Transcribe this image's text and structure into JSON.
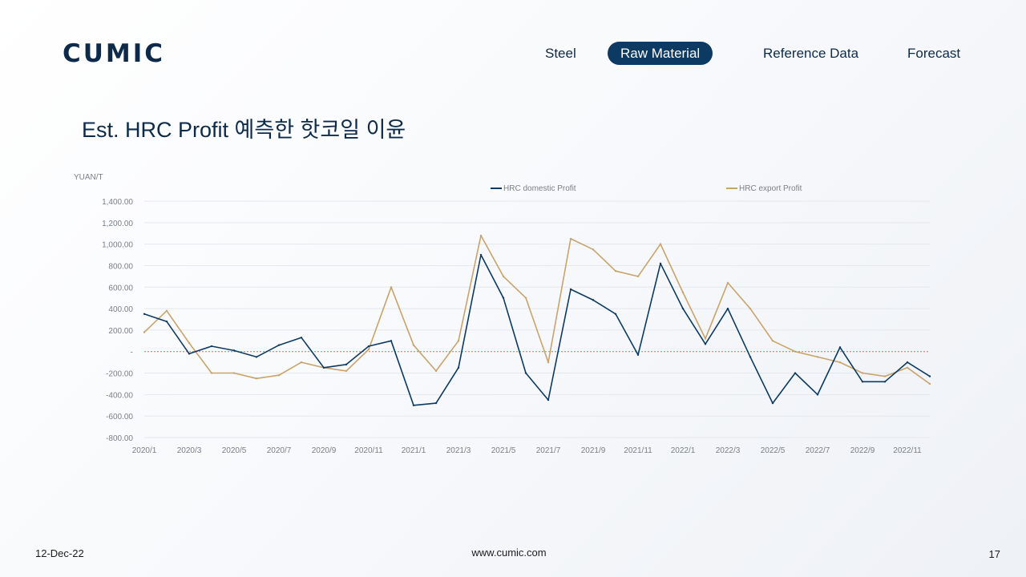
{
  "logo": {
    "text": "CUMIC"
  },
  "nav": {
    "items": [
      {
        "label": "Steel",
        "active": false
      },
      {
        "label": "Raw Material",
        "active": true
      },
      {
        "label": "Reference Data",
        "active": false
      },
      {
        "label": "Forecast",
        "active": false
      }
    ]
  },
  "page": {
    "title": "Est. HRC Profit 예측한 핫코일 이윤"
  },
  "footer": {
    "date": "12-Dec-22",
    "url": "www.cumic.com",
    "page_number": "17"
  },
  "colors": {
    "domestic": "#0d3a63",
    "export": "#c9a36c",
    "zero_line": "#e06666",
    "grid": "#e4e7ec"
  },
  "chart_data": {
    "type": "line",
    "ylabel": "YUAN/T",
    "ylim": [
      -800,
      1400
    ],
    "yticks": [
      1400,
      1200,
      1000,
      800,
      600,
      400,
      200,
      0,
      -200,
      -400,
      -600,
      -800
    ],
    "ytick_labels": [
      "1,400.00",
      "1,200.00",
      "1,000.00",
      "800.00",
      "600.00",
      "400.00",
      "200.00",
      "-",
      "-200.00",
      "-400.00",
      "-600.00",
      "-800.00"
    ],
    "xtick_labels": [
      "2020/1",
      "2020/3",
      "2020/5",
      "2020/7",
      "2020/9",
      "2020/11",
      "2021/1",
      "2021/3",
      "2021/5",
      "2021/7",
      "2021/9",
      "2021/11",
      "2022/1",
      "2022/3",
      "2022/5",
      "2022/7",
      "2022/9",
      "2022/11"
    ],
    "legend_placement": "top",
    "grid": true,
    "x": [
      "2020/1",
      "2020/2",
      "2020/3",
      "2020/4",
      "2020/5",
      "2020/6",
      "2020/7",
      "2020/8",
      "2020/9",
      "2020/10",
      "2020/11",
      "2020/12",
      "2021/1",
      "2021/2",
      "2021/3",
      "2021/4",
      "2021/5",
      "2021/6",
      "2021/7",
      "2021/8",
      "2021/9",
      "2021/10",
      "2021/11",
      "2021/12",
      "2022/1",
      "2022/2",
      "2022/3",
      "2022/4",
      "2022/5",
      "2022/6",
      "2022/7",
      "2022/8",
      "2022/9",
      "2022/10",
      "2022/11",
      "2022/12"
    ],
    "series": [
      {
        "name": "HRC domestic Profit",
        "values": [
          350,
          280,
          -20,
          50,
          10,
          -50,
          60,
          130,
          -150,
          -120,
          50,
          100,
          -500,
          -480,
          -150,
          900,
          500,
          -200,
          -450,
          580,
          480,
          350,
          -30,
          820,
          400,
          70,
          400,
          -50,
          -480,
          -200,
          -400,
          40,
          -280,
          -280,
          -100,
          -230
        ]
      },
      {
        "name": "HRC export Profit",
        "values": [
          180,
          380,
          80,
          -200,
          -200,
          -250,
          -220,
          -100,
          -150,
          -180,
          20,
          600,
          60,
          -180,
          100,
          1080,
          700,
          500,
          -100,
          1050,
          950,
          750,
          700,
          1000,
          550,
          120,
          640,
          400,
          100,
          0,
          -50,
          -100,
          -200,
          -230,
          -150,
          -300
        ]
      }
    ]
  }
}
